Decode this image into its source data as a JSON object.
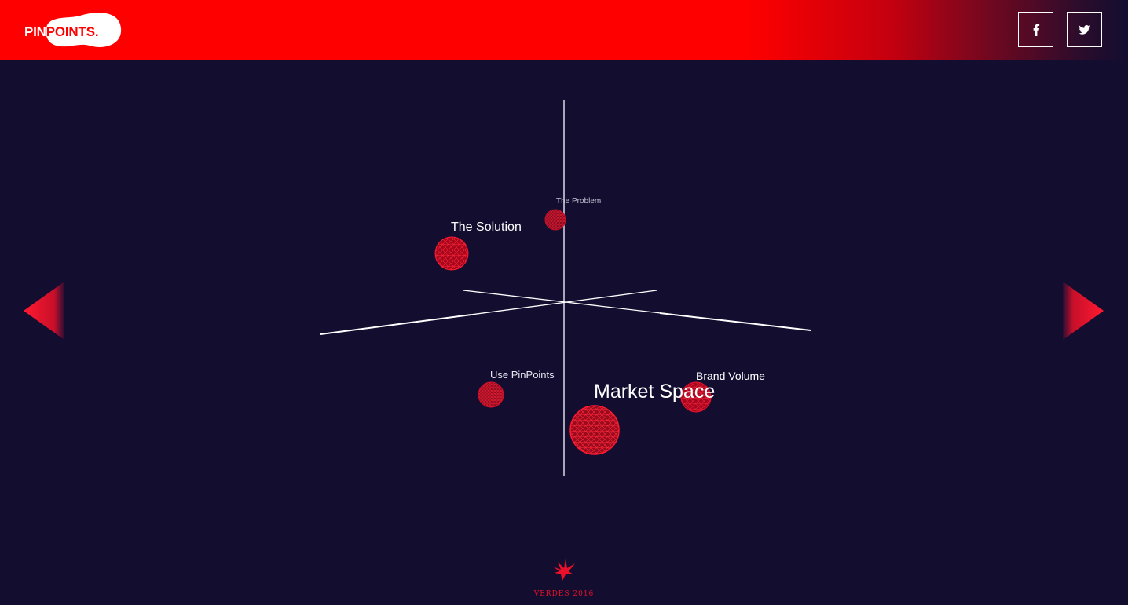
{
  "header": {
    "logo": {
      "part1": "PIN",
      "part2": "POINTS."
    },
    "social": [
      {
        "label": "f",
        "icon": "facebook-icon"
      },
      {
        "label": "t",
        "icon": "twitter-icon"
      }
    ]
  },
  "colors": {
    "background": "#130d30",
    "accent": "#ff0000",
    "sphere": "#e8001a"
  },
  "scene": {
    "points": [
      {
        "label": "The Problem"
      },
      {
        "label": "The Solution"
      },
      {
        "label": "Use PinPoints"
      },
      {
        "label": "Brand Volume"
      },
      {
        "label": "Market Space"
      }
    ]
  },
  "nav": {
    "prev_icon": "arrow-left-icon",
    "next_icon": "arrow-right-icon"
  },
  "footer": {
    "text": "VERDES 2016",
    "icon": "bird-logo-icon"
  }
}
